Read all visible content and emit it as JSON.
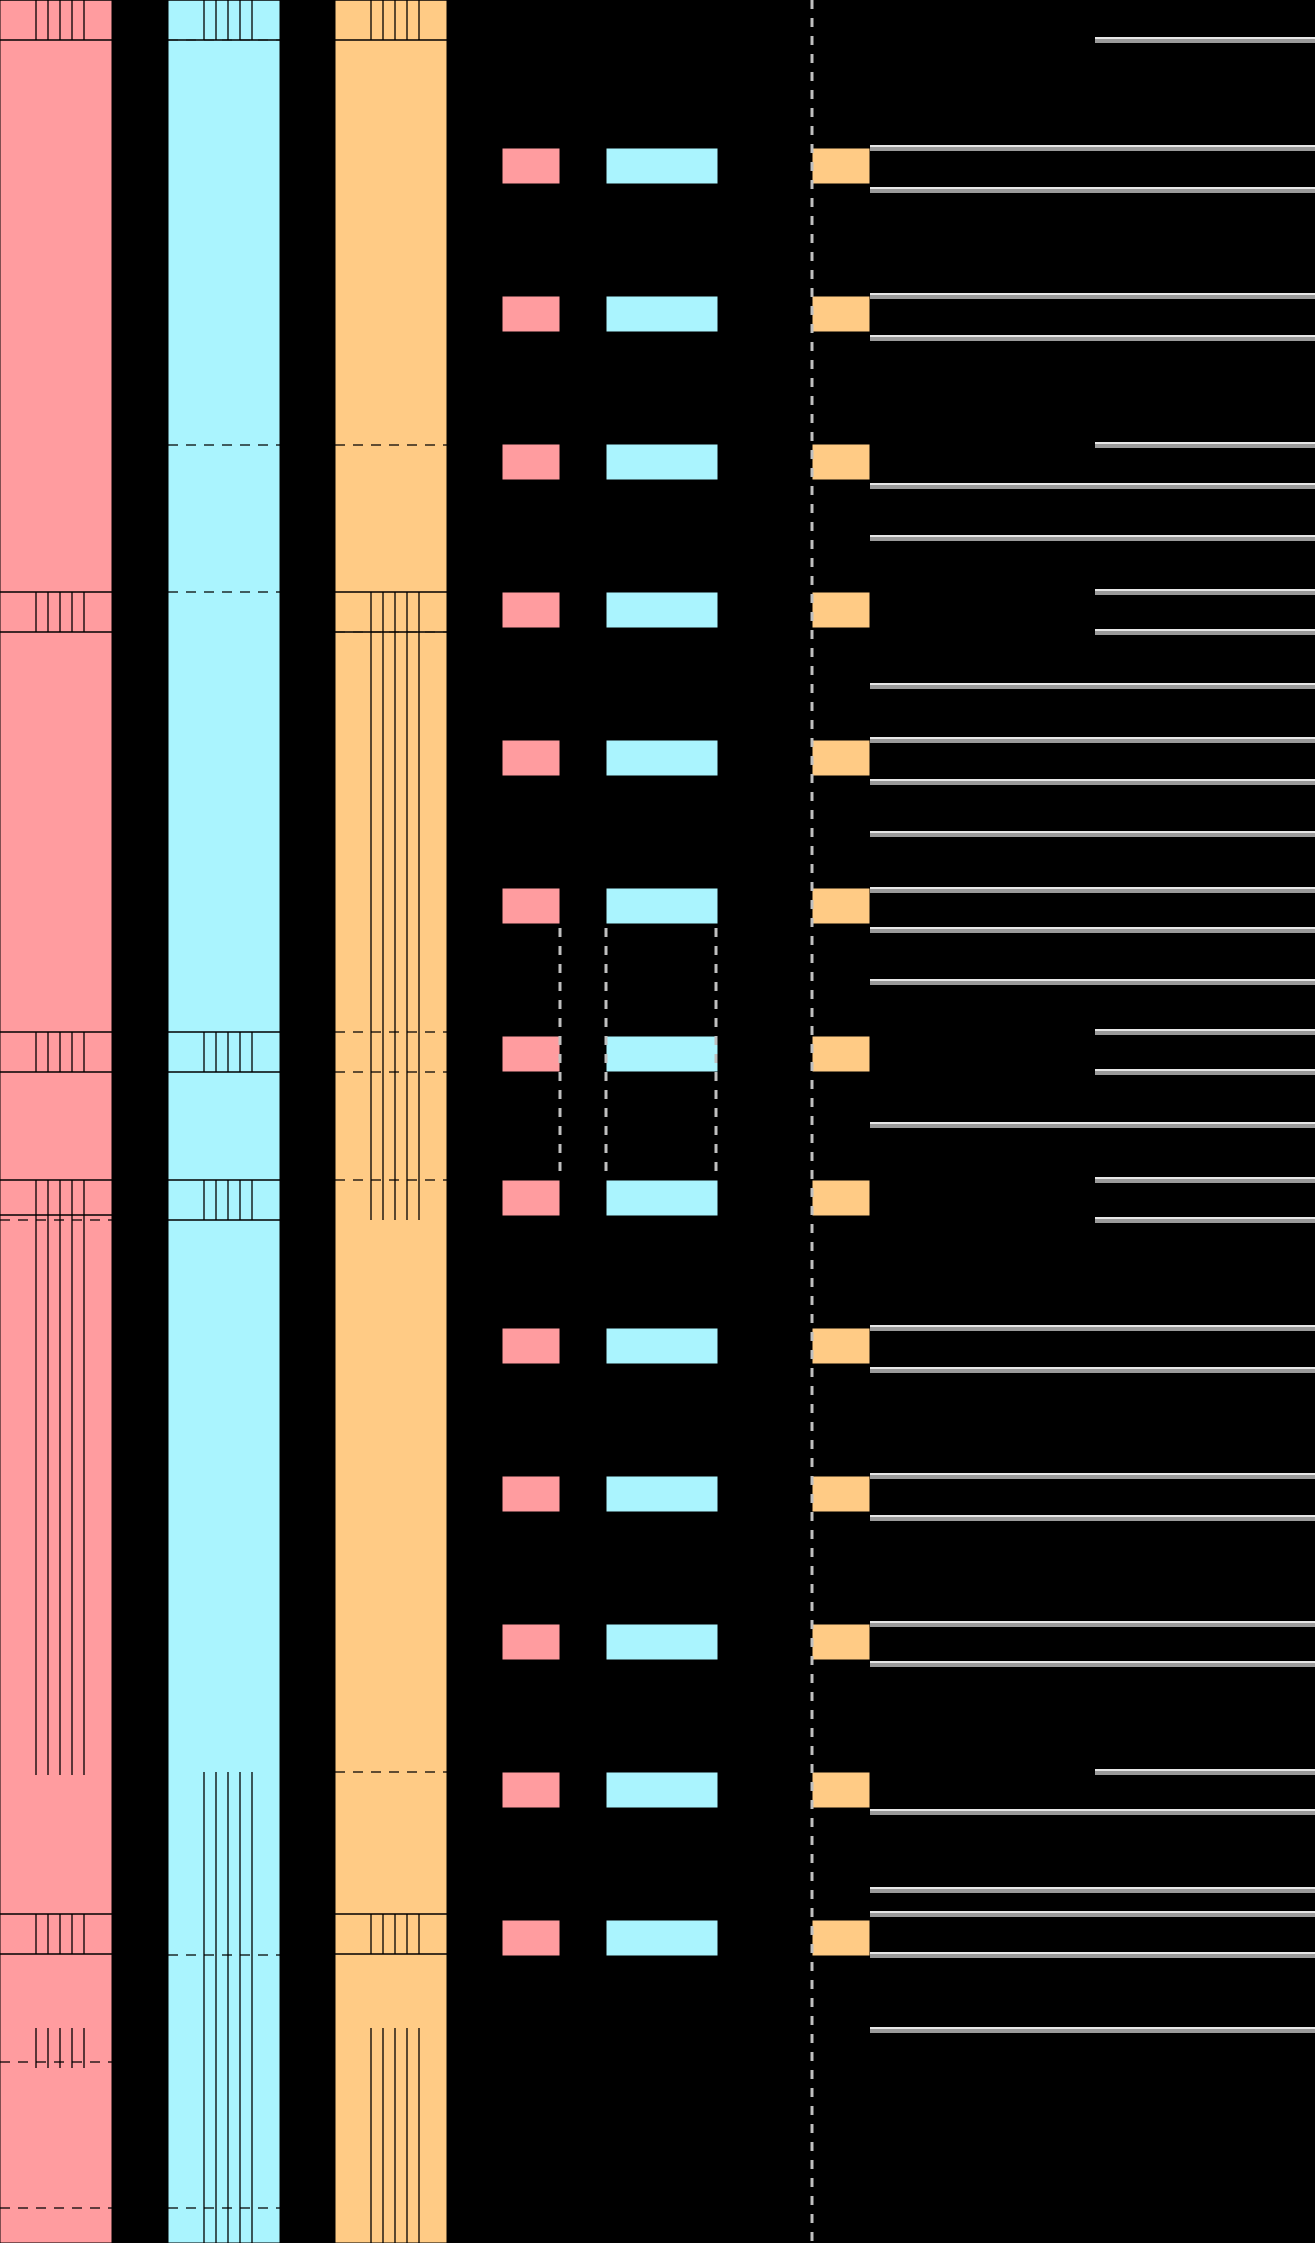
{
  "colors": {
    "background": "#000000",
    "pink": "#ff9c9f",
    "cyan": "#aaf4fe",
    "orange": "#ffcb85",
    "divider": "#000000",
    "connector_gray": "#c0c0c0",
    "wire_gray": "#9a9a9a",
    "wire_highlight": "#ffffff"
  },
  "columns": [
    {
      "id": "pink-column",
      "color_key": "pink"
    },
    {
      "id": "cyan-column",
      "color_key": "cyan"
    },
    {
      "id": "orange-column",
      "color_key": "orange"
    }
  ],
  "pin_rows": 13,
  "bit_groups": {
    "pink": [
      {
        "style": "bits",
        "dashed": false,
        "solid": true
      },
      {
        "style": "bits",
        "dashed": false,
        "solid": true
      },
      {
        "style": "bits",
        "dashed": false,
        "solid": true
      },
      {
        "style": "bits-tall",
        "dashed": true,
        "solid": true
      },
      {
        "style": "bits",
        "dashed": false,
        "solid": true
      },
      {
        "style": "bits",
        "dashed": true,
        "solid": false
      }
    ],
    "cyan": [
      {
        "style": "bits-tall",
        "dashed": true,
        "solid": true
      },
      {
        "style": "bits",
        "dashed": false,
        "solid": true
      },
      {
        "style": "bits",
        "dashed": false,
        "solid": true
      },
      {
        "style": "bits-tall",
        "dashed": true,
        "solid": false
      }
    ],
    "orange": [
      {
        "style": "bits",
        "dashed": false,
        "solid": true
      },
      {
        "style": "bits-tall",
        "dashed": true,
        "solid": true
      },
      {
        "style": "bits",
        "dashed": false,
        "solid": true
      },
      {
        "style": "bits-tall",
        "dashed": true,
        "solid": false
      }
    ]
  },
  "dashed_links": 2,
  "wires": 34
}
